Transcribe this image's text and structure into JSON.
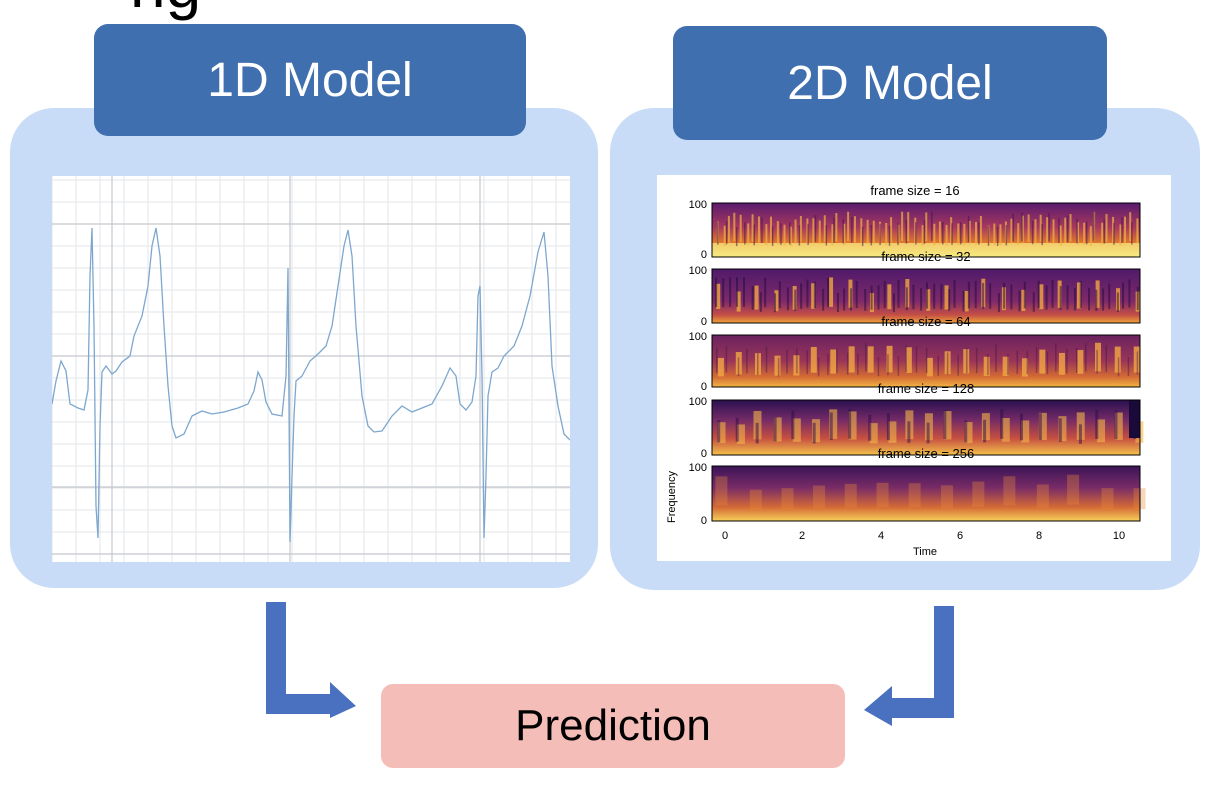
{
  "cut_title": "ng",
  "model_1d": {
    "label": "1D Model"
  },
  "model_2d": {
    "label": "2D Model"
  },
  "prediction": {
    "label": "Prediction"
  },
  "spectrograms": {
    "titles": [
      "frame size = 16",
      "frame size = 32",
      "frame size = 64",
      "frame size = 128",
      "frame size = 256"
    ],
    "y_ticks": [
      "100",
      "0"
    ],
    "x_ticks": [
      "0",
      "2",
      "4",
      "6",
      "8",
      "10"
    ],
    "xlabel": "Time",
    "ylabel": "Frequency"
  },
  "colors": {
    "panel": "#c9dcf7",
    "tab": "#3f6fae",
    "prediction": "#f5bdb8",
    "arrow": "#4a70c0"
  }
}
